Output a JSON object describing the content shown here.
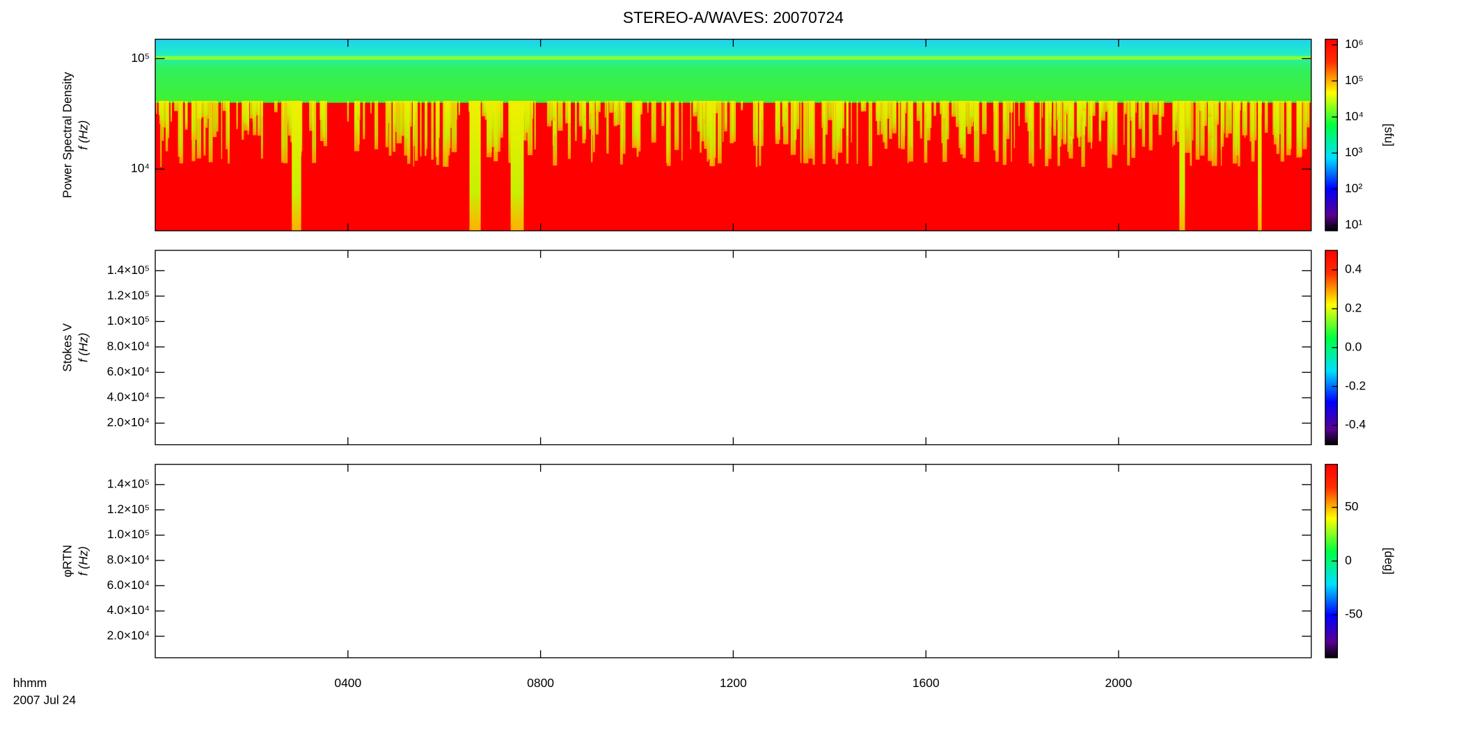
{
  "chart_data": [
    {
      "type": "heatmap",
      "title": "STEREO-A/WAVES: 20070724",
      "ylabel": [
        "Power Spectral Density",
        "f (Hz)"
      ],
      "log_y": true,
      "ylim": [
        2760,
        150000
      ],
      "yticks": [
        {
          "value": 10000,
          "label": "10⁴"
        },
        {
          "value": 100000,
          "label": "10⁵"
        }
      ],
      "colorbar": {
        "label": "[sfu]",
        "log": true,
        "clim": [
          7,
          1430000
        ],
        "ticks": [
          {
            "value": 10,
            "label": "10¹"
          },
          {
            "value": 100,
            "label": "10²"
          },
          {
            "value": 1000,
            "label": "10³"
          },
          {
            "value": 10000,
            "label": "10⁴"
          },
          {
            "value": 100000,
            "label": "10⁵"
          },
          {
            "value": 1000000,
            "label": "10⁶"
          }
        ]
      }
    },
    {
      "type": "heatmap",
      "ylabel": [
        "Stokes V",
        "f (Hz)"
      ],
      "log_y": false,
      "ylim": [
        3000,
        156000
      ],
      "yticks": [
        {
          "value": 20000,
          "label": "2.0×10⁴"
        },
        {
          "value": 40000,
          "label": "4.0×10⁴"
        },
        {
          "value": 60000,
          "label": "6.0×10⁴"
        },
        {
          "value": 80000,
          "label": "8.0×10⁴"
        },
        {
          "value": 100000,
          "label": "1.0×10⁵"
        },
        {
          "value": 120000,
          "label": "1.2×10⁵"
        },
        {
          "value": 140000,
          "label": "1.4×10⁵"
        }
      ],
      "colorbar": {
        "log": false,
        "clim": [
          -0.5,
          0.5
        ],
        "ticks": [
          {
            "value": -0.4,
            "label": "-0.4"
          },
          {
            "value": -0.2,
            "label": "-0.2"
          },
          {
            "value": 0,
            "label": "0.0"
          },
          {
            "value": 0.2,
            "label": "0.2"
          },
          {
            "value": 0.4,
            "label": "0.4"
          }
        ]
      }
    },
    {
      "type": "heatmap",
      "ylabel": [
        "φRTN",
        "f (Hz)"
      ],
      "log_y": false,
      "ylim": [
        3000,
        156000
      ],
      "yticks": [
        {
          "value": 20000,
          "label": "2.0×10⁴"
        },
        {
          "value": 40000,
          "label": "4.0×10⁴"
        },
        {
          "value": 60000,
          "label": "6.0×10⁴"
        },
        {
          "value": 80000,
          "label": "8.0×10⁴"
        },
        {
          "value": 100000,
          "label": "1.0×10⁵"
        },
        {
          "value": 120000,
          "label": "1.2×10⁵"
        },
        {
          "value": 140000,
          "label": "1.4×10⁵"
        }
      ],
      "colorbar": {
        "label": "[deg]",
        "log": false,
        "clim": [
          -90,
          90
        ],
        "ticks": [
          -50,
          0,
          50
        ]
      },
      "xlabel": [
        "hhmm",
        "2007 Jul 24"
      ],
      "xlim": [
        0,
        24
      ],
      "xticks": [
        {
          "value": 4,
          "label": "0400"
        },
        {
          "value": 8,
          "label": "0800"
        },
        {
          "value": 12,
          "label": "1200"
        },
        {
          "value": 16,
          "label": "1600"
        },
        {
          "value": 20,
          "label": "2000"
        }
      ]
    }
  ]
}
